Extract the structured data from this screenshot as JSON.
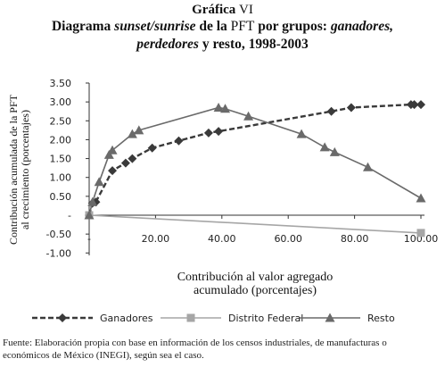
{
  "header": {
    "kicker": "Gráfica",
    "kicker_num": "VI",
    "title_p1": "Diagrama ",
    "title_p2": "sunset/sunrise",
    "title_p3": " de la ",
    "title_p4": "PFT",
    "title_p5": " por grupos: ",
    "title_p6": "ganadores,",
    "title_p7": "perdedores",
    "title_p8": " y resto, 1998-2003"
  },
  "footer": {
    "source_p1": "Fuente: Elaboración propia con base en información de los censos industriales, de manufacturas o",
    "source_p2": "económicos de México (",
    "source_p3": "INEGI",
    "source_p4": "), según sea el caso."
  },
  "chart_data": {
    "type": "line",
    "xlabel_lines": [
      "Contribución al valor agregado",
      "acumulado (porcentajes)"
    ],
    "ylabel_lines": [
      "Contribución acumulada de la PFT",
      "al crecimiento (porcentajes)"
    ],
    "xlim": [
      0,
      100
    ],
    "ylim": [
      -1.0,
      3.5
    ],
    "x_ticks": [
      0,
      20,
      40,
      60,
      80,
      100
    ],
    "x_tick_labels": [
      "-",
      "20.00",
      "40.00",
      "60.00",
      "80.00",
      "100.00"
    ],
    "y_ticks": [
      3.5,
      3.0,
      2.5,
      2.0,
      1.5,
      1.0,
      0.5,
      0,
      -0.5,
      -1.0
    ],
    "y_tick_labels": [
      "3.50",
      "3.00",
      "2.50",
      "2.00",
      "1.50",
      "1.00",
      "0.50",
      "-",
      "-0.50",
      "-1.00"
    ],
    "grid": false,
    "legend_position": "bottom",
    "series": [
      {
        "name": "Ganadores",
        "marker": "diamond",
        "dash": "dashed",
        "color": "#3a3a3a",
        "points": [
          [
            0,
            0
          ],
          [
            1,
            0.32
          ],
          [
            2,
            0.35
          ],
          [
            7,
            1.18
          ],
          [
            11,
            1.38
          ],
          [
            13,
            1.5
          ],
          [
            19,
            1.78
          ],
          [
            27,
            1.97
          ],
          [
            36,
            2.18
          ],
          [
            39,
            2.22
          ],
          [
            73,
            2.75
          ],
          [
            79,
            2.85
          ],
          [
            97,
            2.93
          ],
          [
            98,
            2.93
          ],
          [
            100,
            2.93
          ]
        ]
      },
      {
        "name": "Distrito Federal",
        "marker": "square",
        "dash": "solid",
        "color": "#a6a6a6",
        "points": [
          [
            0,
            0
          ],
          [
            100,
            -0.47
          ]
        ]
      },
      {
        "name": "Resto",
        "marker": "triangle",
        "dash": "solid",
        "color": "#6a6a6a",
        "points": [
          [
            0,
            0
          ],
          [
            1,
            0.35
          ],
          [
            3,
            0.88
          ],
          [
            6,
            1.6
          ],
          [
            7,
            1.72
          ],
          [
            13,
            2.15
          ],
          [
            15,
            2.25
          ],
          [
            39,
            2.85
          ],
          [
            41,
            2.82
          ],
          [
            48,
            2.62
          ],
          [
            64,
            2.15
          ],
          [
            71,
            1.8
          ],
          [
            74,
            1.67
          ],
          [
            84,
            1.27
          ],
          [
            100,
            0.45
          ]
        ]
      }
    ]
  }
}
